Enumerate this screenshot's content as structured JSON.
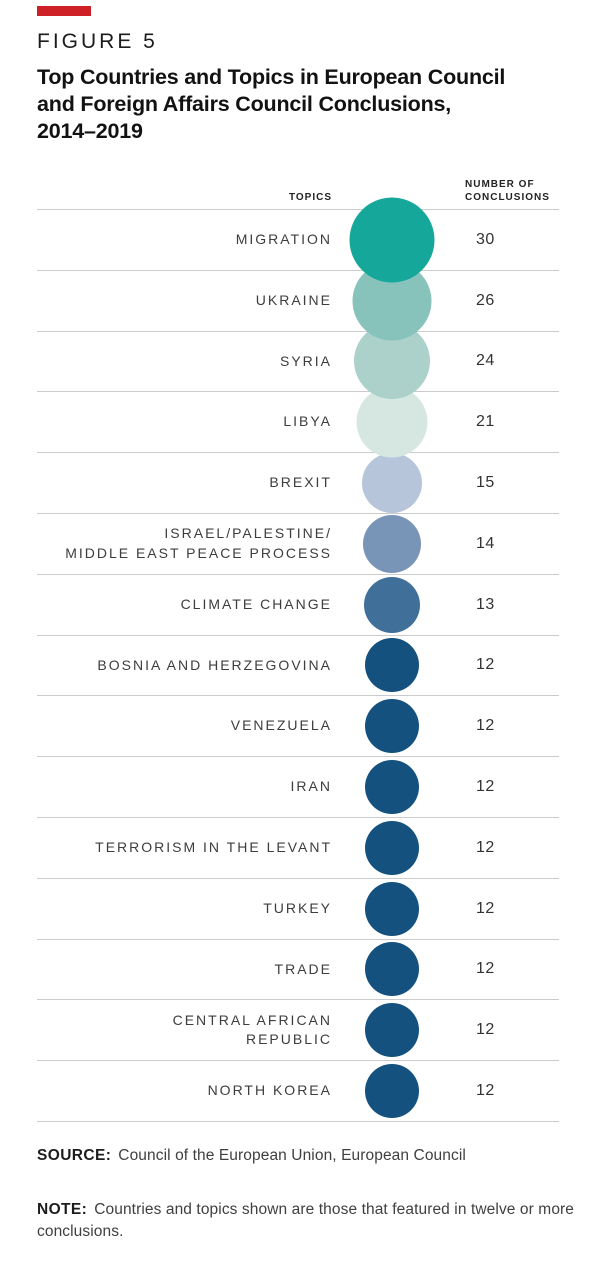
{
  "figure": {
    "kicker": "FIGURE 5",
    "title": "Top Countries and Topics in European Council\nand Foreign Affairs Council Conclusions,\n2014–2019"
  },
  "table_headers": {
    "topics": "TOPICS",
    "value": "NUMBER OF\nCONCLUSIONS"
  },
  "rows": [
    {
      "label": "MIGRATION",
      "value": "30",
      "diameter": 85,
      "color": "#14a79a"
    },
    {
      "label": "UKRAINE",
      "value": "26",
      "diameter": 79,
      "color": "#87c3ba"
    },
    {
      "label": "SYRIA",
      "value": "24",
      "diameter": 76,
      "color": "#abd1ca"
    },
    {
      "label": "LIBYA",
      "value": "21",
      "diameter": 71,
      "color": "#d6e7e2"
    },
    {
      "label": "BREXIT",
      "value": "15",
      "diameter": 60,
      "color": "#b7c5da"
    },
    {
      "label": "ISRAEL/PALESTINE/\nMIDDLE EAST PEACE PROCESS",
      "value": "14",
      "diameter": 58,
      "color": "#7894b7"
    },
    {
      "label": "CLIMATE CHANGE",
      "value": "13",
      "diameter": 56,
      "color": "#40709a"
    },
    {
      "label": "BOSNIA AND HERZEGOVINA",
      "value": "12",
      "diameter": 54,
      "color": "#15517e"
    },
    {
      "label": "VENEZUELA",
      "value": "12",
      "diameter": 54,
      "color": "#15517e"
    },
    {
      "label": "IRAN",
      "value": "12",
      "diameter": 54,
      "color": "#15517e"
    },
    {
      "label": "TERRORISM IN THE LEVANT",
      "value": "12",
      "diameter": 54,
      "color": "#15517e"
    },
    {
      "label": "TURKEY",
      "value": "12",
      "diameter": 54,
      "color": "#15517e"
    },
    {
      "label": "TRADE",
      "value": "12",
      "diameter": 54,
      "color": "#15517e"
    },
    {
      "label": "CENTRAL AFRICAN\nREPUBLIC",
      "value": "12",
      "diameter": 54,
      "color": "#15517e"
    },
    {
      "label": "NORTH KOREA",
      "value": "12",
      "diameter": 54,
      "color": "#15517e"
    }
  ],
  "source": {
    "label": "SOURCE:",
    "text": "Council of the European Union, European Council"
  },
  "note": {
    "label": "NOTE:",
    "text": "Countries and topics shown are those that featured in twelve or more conclusions."
  },
  "accent": {
    "red_bar": "#ce2127",
    "divider": "#cbcbcb"
  },
  "chart_data": {
    "type": "scatter",
    "subtype": "proportional-circle-list",
    "title": "Top Countries and Topics in European Council and Foreign Affairs Council Conclusions, 2014–2019",
    "category_label": "TOPICS",
    "value_label": "NUMBER OF CONCLUSIONS",
    "categories": [
      "MIGRATION",
      "UKRAINE",
      "SYRIA",
      "LIBYA",
      "BREXIT",
      "ISRAEL/PALESTINE/ MIDDLE EAST PEACE PROCESS",
      "CLIMATE CHANGE",
      "BOSNIA AND HERZEGOVINA",
      "VENEZUELA",
      "IRAN",
      "TERRORISM IN THE LEVANT",
      "TURKEY",
      "TRADE",
      "CENTRAL AFRICAN REPUBLIC",
      "NORTH KOREA"
    ],
    "values": [
      30,
      26,
      24,
      21,
      15,
      14,
      13,
      12,
      12,
      12,
      12,
      12,
      12,
      12,
      12
    ],
    "colors": [
      "#14a79a",
      "#87c3ba",
      "#abd1ca",
      "#d6e7e2",
      "#b7c5da",
      "#7894b7",
      "#40709a",
      "#15517e",
      "#15517e",
      "#15517e",
      "#15517e",
      "#15517e",
      "#15517e",
      "#15517e",
      "#15517e"
    ],
    "encoding": "circle size proportional to value; color ramps teal to dark navy as value decreases",
    "legend_position": "none",
    "grid": "horizontal row dividers only",
    "value_range": [
      12,
      30
    ]
  }
}
